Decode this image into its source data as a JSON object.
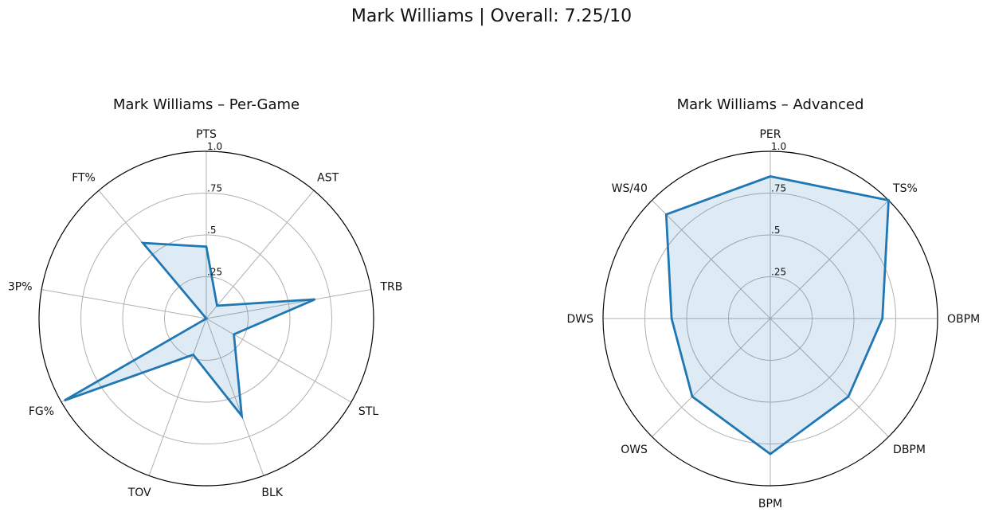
{
  "suptitle": "Mark Williams | Overall: 7.25/10",
  "colors": {
    "line": "#1f77b4",
    "fill": "#1f77b4",
    "grid": "#b0b0b0",
    "frame": "#000000"
  },
  "chart_data": [
    {
      "type": "radar",
      "title": "Mark Williams – Per-Game",
      "rlim": [
        0,
        1
      ],
      "rticks": [
        0.25,
        0.5,
        0.75,
        1.0
      ],
      "rtick_labels": [
        ".25",
        ".5",
        ".75",
        "1.0"
      ],
      "grid": true,
      "categories": [
        "PTS",
        "AST",
        "TRB",
        "STL",
        "BLK",
        "TOV",
        "FG%",
        "3P%",
        "FT%"
      ],
      "values": [
        0.43,
        0.1,
        0.66,
        0.19,
        0.62,
        0.23,
        0.98,
        0.0,
        0.59
      ]
    },
    {
      "type": "radar",
      "title": "Mark Williams – Advanced",
      "rlim": [
        0,
        1
      ],
      "rticks": [
        0.25,
        0.5,
        0.75,
        1.0
      ],
      "rtick_labels": [
        ".25",
        ".5",
        ".75",
        "1.0"
      ],
      "grid": true,
      "categories": [
        "PER",
        "TS%",
        "OBPM",
        "DBPM",
        "BPM",
        "OWS",
        "DWS",
        "WS/40"
      ],
      "values": [
        0.85,
        1.0,
        0.67,
        0.66,
        0.81,
        0.66,
        0.59,
        0.88
      ]
    }
  ]
}
